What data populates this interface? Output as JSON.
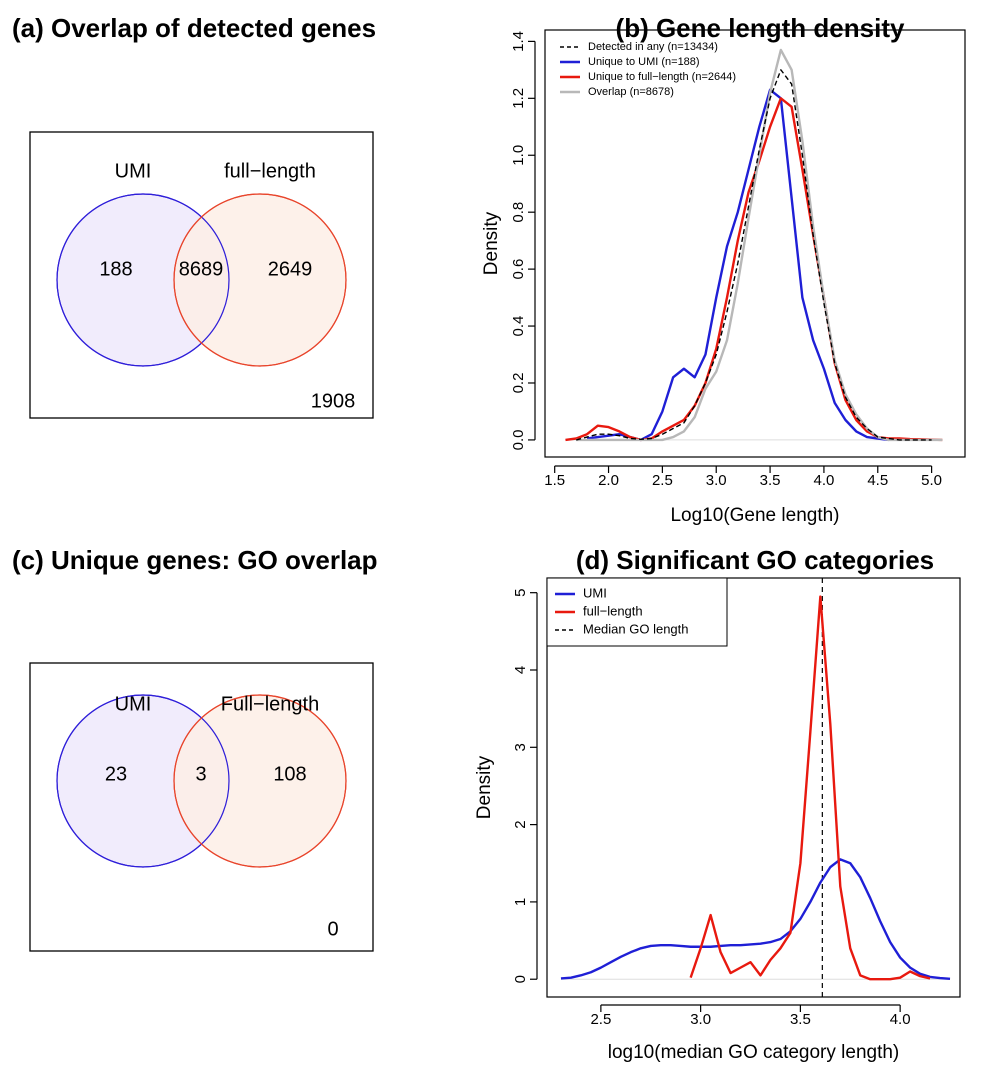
{
  "chart_data": [
    {
      "type": "venn",
      "title": "(a) Overlap of detected genes",
      "sets": [
        {
          "name": "UMI",
          "color": "#2f1fd9",
          "fill": "#efe9fb"
        },
        {
          "name": "full−length",
          "color": "#e8452c",
          "fill": "#fdeee6"
        }
      ],
      "values": [
        188,
        8689,
        2649,
        1908
      ]
    },
    {
      "type": "line",
      "title": "(b) Gene length density",
      "xlabel": "Log10(Gene length)",
      "ylabel": "Density",
      "x": [
        1.6,
        1.7,
        1.8,
        1.9,
        2.0,
        2.1,
        2.2,
        2.3,
        2.4,
        2.5,
        2.6,
        2.7,
        2.8,
        2.9,
        3.0,
        3.1,
        3.2,
        3.3,
        3.4,
        3.5,
        3.6,
        3.7,
        3.8,
        3.9,
        4.0,
        4.1,
        4.2,
        4.3,
        4.4,
        4.5,
        4.6,
        4.7,
        4.8,
        4.9,
        5.0,
        5.1
      ],
      "series": [
        {
          "name": "Detected in any (n=13434)",
          "color": "#000000",
          "dash": true,
          "values": [
            null,
            0,
            0.01,
            0.02,
            0.02,
            0.015,
            0.005,
            0.002,
            0.005,
            0.02,
            0.04,
            0.06,
            0.12,
            0.2,
            0.3,
            0.45,
            0.62,
            0.82,
            1.02,
            1.2,
            1.3,
            1.25,
            1.0,
            0.72,
            0.48,
            0.27,
            0.15,
            0.08,
            0.04,
            0.01,
            0.005,
            0,
            0,
            0,
            0,
            null
          ]
        },
        {
          "name": "Unique to UMI (n=188)",
          "color": "#1f1fd6",
          "dash": false,
          "values": [
            null,
            null,
            0.005,
            0.01,
            0.015,
            0.02,
            0.01,
            0,
            0.02,
            0.1,
            0.22,
            0.25,
            0.22,
            0.3,
            0.5,
            0.68,
            0.8,
            0.95,
            1.1,
            1.23,
            1.2,
            0.85,
            0.5,
            0.35,
            0.25,
            0.13,
            0.07,
            0.03,
            0.01,
            0.005,
            0,
            null,
            null,
            null,
            null,
            null
          ]
        },
        {
          "name": "Unique to full−length (n=2644)",
          "color": "#e8190f",
          "dash": false,
          "values": [
            0,
            0.005,
            0.02,
            0.05,
            0.045,
            0.03,
            0.01,
            0,
            0.005,
            0.03,
            0.05,
            0.07,
            0.12,
            0.2,
            0.32,
            0.5,
            0.7,
            0.87,
            0.98,
            1.1,
            1.2,
            1.17,
            0.95,
            0.72,
            0.5,
            0.27,
            0.14,
            0.07,
            0.03,
            0.01,
            0.005,
            0.005,
            0.003,
            0.002,
            0.001,
            0
          ]
        },
        {
          "name": "Overlap (n=8678)",
          "color": "#b8b8b8",
          "dash": false,
          "values": [
            null,
            0,
            0,
            0,
            0,
            0,
            0,
            0,
            0,
            0,
            0.01,
            0.03,
            0.08,
            0.18,
            0.24,
            0.35,
            0.55,
            0.78,
            1.0,
            1.22,
            1.37,
            1.3,
            1.05,
            0.75,
            0.5,
            0.28,
            0.16,
            0.09,
            0.04,
            0.01,
            0,
            0,
            0,
            0,
            0,
            0
          ]
        }
      ],
      "xlim": [
        1.41,
        5.31
      ],
      "ylim": [
        -0.06,
        1.44
      ],
      "xticks": [
        1.5,
        {
          "value": 2,
          "label": "2.0"
        },
        2.5,
        {
          "value": 3,
          "label": "3.0"
        },
        3.5,
        {
          "value": 4,
          "label": "4.0"
        },
        4.5,
        {
          "value": 5,
          "label": "5.0"
        }
      ],
      "yticks": [
        {
          "value": 0,
          "label": "0.0"
        },
        0.2,
        0.4,
        0.6,
        0.8,
        {
          "value": 1,
          "label": "1.0"
        },
        1.2,
        1.4
      ],
      "zero_line": true,
      "legend": "top-left",
      "legend_box": false
    },
    {
      "type": "venn",
      "title": "(c) Unique genes: GO overlap",
      "sets": [
        {
          "name": "UMI",
          "color": "#2f1fd9",
          "fill": "#efe9fb"
        },
        {
          "name": "Full−length",
          "color": "#e8452c",
          "fill": "#fdeee6"
        }
      ],
      "values": [
        23,
        3,
        108,
        0
      ]
    },
    {
      "type": "line",
      "title": "(d) Significant GO categories",
      "xlabel": "log10(median GO category length)",
      "ylabel": "Density",
      "x": [
        2.3,
        2.35,
        2.4,
        2.45,
        2.5,
        2.55,
        2.6,
        2.65,
        2.7,
        2.75,
        2.8,
        2.85,
        2.9,
        2.95,
        3.0,
        3.05,
        3.1,
        3.15,
        3.2,
        3.25,
        3.3,
        3.35,
        3.4,
        3.45,
        3.5,
        3.55,
        3.6,
        3.65,
        3.7,
        3.75,
        3.8,
        3.85,
        3.9,
        3.95,
        4.0,
        4.05,
        4.1,
        4.15,
        4.2,
        4.25
      ],
      "series": [
        {
          "name": "UMI",
          "color": "#1f1fd6",
          "dash": false,
          "values": [
            0.01,
            0.02,
            0.05,
            0.09,
            0.15,
            0.22,
            0.29,
            0.35,
            0.4,
            0.43,
            0.44,
            0.44,
            0.43,
            0.42,
            0.42,
            0.42,
            0.43,
            0.44,
            0.44,
            0.45,
            0.46,
            0.48,
            0.52,
            0.62,
            0.78,
            1.0,
            1.25,
            1.45,
            1.55,
            1.5,
            1.32,
            1.05,
            0.75,
            0.48,
            0.28,
            0.15,
            0.07,
            0.03,
            0.015,
            0.005
          ]
        },
        {
          "name": "full−length",
          "color": "#e8190f",
          "dash": false,
          "values": [
            null,
            null,
            null,
            null,
            null,
            null,
            null,
            null,
            null,
            null,
            null,
            null,
            null,
            0.02,
            0.4,
            0.83,
            0.35,
            0.08,
            0.15,
            0.22,
            0.05,
            0.25,
            0.4,
            0.6,
            1.5,
            3.2,
            4.95,
            3.3,
            1.2,
            0.4,
            0.05,
            0,
            0,
            0,
            0.02,
            0.1,
            0.04,
            0.01,
            null,
            null
          ]
        }
      ],
      "vline": {
        "name": "Median GO length",
        "value": 3.61,
        "color": "#000000"
      },
      "xlim": [
        2.23,
        4.3
      ],
      "ylim": [
        -0.23,
        5.19
      ],
      "xticks": [
        2.5,
        {
          "value": 3,
          "label": "3.0"
        },
        3.5,
        {
          "value": 4,
          "label": "4.0"
        }
      ],
      "yticks": [
        0,
        1,
        2,
        3,
        4,
        5
      ],
      "zero_line": true,
      "legend": "top-left",
      "legend_box": true
    }
  ]
}
